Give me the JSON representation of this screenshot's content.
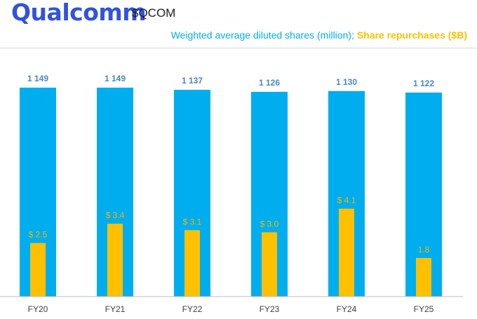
{
  "brand": {
    "logo_text": "Qualcomm",
    "ticker": "$QCOM"
  },
  "colors": {
    "brand_blue": "#3253DC",
    "bar_blue": "#00AEEF",
    "bar_yellow": "#FFC000",
    "label_blue": "#4A86C5",
    "label_yellow": "#F0B400",
    "axis": "#BFBFBF",
    "tick_text": "#404040"
  },
  "chart_data": {
    "type": "bar",
    "title": "Weighted average diluted shares (million); Share repurchases ($B)",
    "categories": [
      "FY20",
      "FY21",
      "FY22",
      "FY23",
      "FY24",
      "FY25"
    ],
    "series": [
      {
        "name": "Weighted average diluted shares (million)",
        "values": [
          1149,
          1149,
          1137,
          1126,
          1130,
          1122
        ],
        "labels": [
          "1 149",
          "1 149",
          "1 137",
          "1 126",
          "1 130",
          "1 122"
        ]
      },
      {
        "name": "Share repurchases ($B)",
        "values": [
          2.5,
          3.4,
          3.1,
          3.0,
          4.1,
          1.8
        ],
        "labels": [
          "$ 2.5",
          "$ 3.4",
          "$ 3.1",
          "$ 3.0",
          "$ 4.1",
          "1.8"
        ]
      }
    ],
    "shares_ylim": [
      0,
      1149
    ],
    "repurchase_ylim": [
      0,
      7.1
    ],
    "legend": "top-right",
    "grid": false
  },
  "subtitle": {
    "shares_part": "Weighted average diluted shares (million);",
    "repurchase_part": "Share repurchases ($B)"
  }
}
